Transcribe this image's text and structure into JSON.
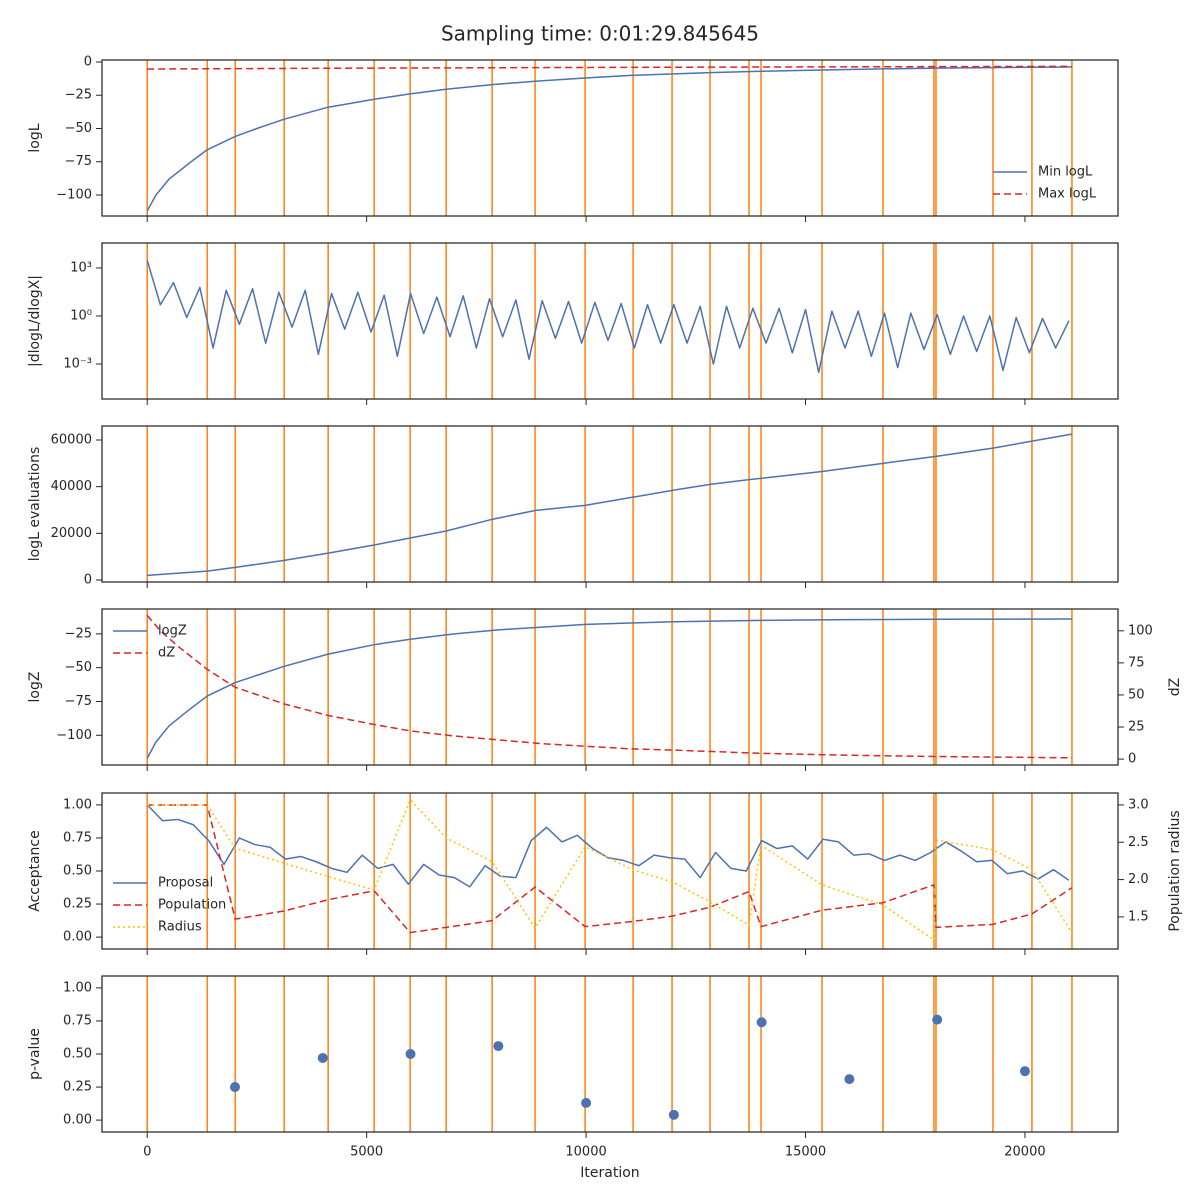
{
  "title": "Sampling time: 0:01:29.845645",
  "chart_data": [
    {
      "type": "line",
      "ylabel": "logL",
      "xlim": [
        -1030,
        22120
      ],
      "xticks": [
        0,
        5000,
        10000,
        15000,
        20000
      ],
      "ylim": [
        -115.8,
        1.5
      ],
      "yticks": [
        0,
        {
          "value": -25,
          "label": "−25"
        },
        {
          "value": -50,
          "label": "−50"
        },
        {
          "value": -75,
          "label": "−75"
        },
        {
          "value": -100,
          "label": "−100"
        }
      ],
      "vlines": [
        0,
        1367,
        2005,
        3121,
        4123,
        5171,
        5991,
        6811,
        7859,
        8838,
        9977,
        11071,
        11959,
        12825,
        13713,
        13986,
        15376,
        16765,
        17927,
        17973,
        19271,
        20159,
        21071
      ],
      "vline_color": "#ff7f0e",
      "legend": "lower right",
      "series": [
        {
          "name": "Min logL",
          "color": "#4c72b0",
          "style": "solid",
          "x": [
            0,
            200,
            500,
            1000,
            1367,
            2005,
            2500,
            3121,
            4123,
            5171,
            5991,
            6811,
            7859,
            8838,
            9977,
            11071,
            12825,
            13986,
            15376,
            16765,
            17973,
            19271,
            21071
          ],
          "values": [
            -112,
            -100,
            -88,
            -75,
            -66,
            -56,
            -50,
            -43,
            -34,
            -28,
            -24,
            -20.5,
            -17,
            -14.5,
            -12,
            -10,
            -8,
            -7,
            -6,
            -5.2,
            -4.6,
            -4.2,
            -3.8
          ]
        },
        {
          "name": "Max logL",
          "color": "#d62728",
          "style": "dashed",
          "x": [
            0,
            5000,
            10000,
            15000,
            21071
          ],
          "values": [
            -5.3,
            -4.6,
            -4.1,
            -3.7,
            -3.3
          ]
        }
      ]
    },
    {
      "type": "line",
      "ylabel": "|dlogL/dlogX|",
      "yscale": "log",
      "xlim": [
        -1030,
        22120
      ],
      "xticks": [
        0,
        5000,
        10000,
        15000,
        20000
      ],
      "ylim": [
        6.5e-06,
        36000
      ],
      "yticks": [
        {
          "value": 1000,
          "label": "10³"
        },
        {
          "value": 1,
          "label": "10⁰"
        },
        {
          "value": 0.001,
          "label": "10⁻³"
        }
      ],
      "vlines": [
        0,
        1367,
        2005,
        3121,
        4123,
        5171,
        5991,
        6811,
        7859,
        8838,
        9977,
        11071,
        11959,
        12825,
        13713,
        13986,
        15376,
        16765,
        17927,
        17973,
        19271,
        20159,
        21071
      ],
      "vline_color": "#ff7f0e",
      "series": [
        {
          "color": "#4c72b0",
          "style": "solid",
          "x": [
            0,
            300,
            600,
            900,
            1200,
            1500,
            1800,
            2100,
            2400,
            2700,
            3000,
            3300,
            3600,
            3900,
            4200,
            4500,
            4800,
            5100,
            5400,
            5700,
            6000,
            6300,
            6600,
            6900,
            7200,
            7500,
            7800,
            8100,
            8400,
            8700,
            9000,
            9300,
            9600,
            9900,
            10200,
            10500,
            10800,
            11100,
            11400,
            11700,
            12000,
            12300,
            12600,
            12900,
            13200,
            13500,
            13800,
            14100,
            14400,
            14700,
            15000,
            15300,
            15600,
            15900,
            16200,
            16500,
            16800,
            17100,
            17400,
            17700,
            18000,
            18300,
            18600,
            18900,
            19200,
            19500,
            19800,
            20100,
            20400,
            20700,
            21000
          ],
          "values": [
            3000,
            5,
            120,
            0.8,
            60,
            0.01,
            40,
            0.3,
            50,
            0.02,
            30,
            0.2,
            40,
            0.004,
            25,
            0.15,
            30,
            0.1,
            20,
            0.003,
            25,
            0.08,
            15,
            0.05,
            18,
            0.01,
            12,
            0.05,
            10,
            0.002,
            9,
            0.04,
            8,
            0.02,
            7,
            0.03,
            6,
            0.01,
            5,
            0.02,
            5,
            0.02,
            4,
            0.001,
            4,
            0.01,
            3,
            0.02,
            3,
            0.005,
            2.5,
            0.0003,
            2,
            0.01,
            2,
            0.003,
            1.5,
            0.0006,
            1.5,
            0.008,
            1.2,
            0.004,
            1,
            0.006,
            1,
            0.0004,
            0.8,
            0.005,
            0.7,
            0.01,
            0.5
          ]
        }
      ]
    },
    {
      "type": "line",
      "ylabel": "logL evaluations",
      "xlim": [
        -1030,
        22120
      ],
      "xticks": [
        0,
        5000,
        10000,
        15000,
        20000
      ],
      "ylim": [
        -860,
        66000
      ],
      "yticks": [
        0,
        20000,
        40000,
        60000
      ],
      "vlines": [
        0,
        1367,
        2005,
        3121,
        4123,
        5171,
        5991,
        6811,
        7859,
        8838,
        9977,
        11071,
        11959,
        12825,
        13713,
        13986,
        15376,
        16765,
        17927,
        17973,
        19271,
        20159,
        21071
      ],
      "vline_color": "#ff7f0e",
      "series": [
        {
          "color": "#4c72b0",
          "style": "solid",
          "x": [
            0,
            1367,
            2005,
            3121,
            4123,
            5171,
            5991,
            6811,
            7859,
            8838,
            9977,
            11071,
            12000,
            12825,
            13713,
            15376,
            16765,
            17973,
            19271,
            20159,
            21071
          ],
          "values": [
            2000,
            3800,
            5400,
            8400,
            11500,
            15000,
            18000,
            21000,
            26000,
            29800,
            32000,
            35500,
            38500,
            41000,
            43000,
            46500,
            50000,
            53000,
            56500,
            59500,
            62500
          ]
        }
      ]
    },
    {
      "type": "line",
      "ylabel": "logZ",
      "y2label": "dZ",
      "xlim": [
        -1030,
        22120
      ],
      "xticks": [
        0,
        5000,
        10000,
        15000,
        20000
      ],
      "ylim": [
        -122,
        -6.6
      ],
      "yticks": [
        {
          "value": -25,
          "label": "−25"
        },
        {
          "value": -50,
          "label": "−50"
        },
        {
          "value": -75,
          "label": "−75"
        },
        {
          "value": -100,
          "label": "−100"
        }
      ],
      "y2lim": [
        -4.6,
        117
      ],
      "y2ticks": [
        0,
        25,
        50,
        75,
        100
      ],
      "vlines": [
        0,
        1367,
        2005,
        3121,
        4123,
        5171,
        5991,
        6811,
        7859,
        8838,
        9977,
        11071,
        11959,
        12825,
        13713,
        13986,
        15376,
        16765,
        17927,
        17973,
        19271,
        20159,
        21071
      ],
      "vline_color": "#ff7f0e",
      "legend": "upper left",
      "series": [
        {
          "name": "logZ",
          "color": "#4c72b0",
          "style": "solid",
          "x": [
            0,
            200,
            500,
            1000,
            1367,
            2005,
            3121,
            4123,
            5171,
            5991,
            7000,
            8000,
            9000,
            10000,
            11000,
            12000,
            14000,
            16000,
            18000,
            21071
          ],
          "values": [
            -117,
            -105,
            -93,
            -80,
            -71,
            -61,
            -49,
            -40,
            -33,
            -29,
            -25,
            -22,
            -20,
            -18,
            -17,
            -16,
            -15,
            -14.5,
            -14.2,
            -14
          ]
        },
        {
          "name": "dZ",
          "color": "#d62728",
          "style": "dashed",
          "axis": "y2",
          "x": [
            0,
            300,
            700,
            1367,
            2005,
            3121,
            4123,
            5171,
            5991,
            7000,
            8000,
            9000,
            10000,
            11000,
            12000,
            14000,
            16000,
            18000,
            21071
          ],
          "values": [
            112,
            100,
            88,
            70,
            56,
            43,
            34,
            27,
            22,
            18,
            15,
            12,
            10,
            8,
            7,
            4.5,
            3,
            2,
            1
          ]
        }
      ]
    },
    {
      "type": "line",
      "ylabel": "Acceptance",
      "y2label": "Population radius",
      "xlim": [
        -1030,
        22120
      ],
      "xticks": [
        0,
        5000,
        10000,
        15000,
        20000
      ],
      "ylim": [
        -0.09,
        1.09
      ],
      "yticks": [
        {
          "value": 0,
          "label": "0.00"
        },
        0.25,
        {
          "value": 0.5,
          "label": "0.50"
        },
        0.75,
        {
          "value": 1,
          "label": "1.00"
        }
      ],
      "y2lim": [
        1.07,
        3.16
      ],
      "y2ticks": [
        1.5,
        {
          "value": 2,
          "label": "2.0"
        },
        2.5,
        {
          "value": 3,
          "label": "3.0"
        }
      ],
      "vlines": [
        0,
        1367,
        2005,
        3121,
        4123,
        5171,
        5991,
        6811,
        7859,
        8838,
        9977,
        11071,
        11959,
        12825,
        13713,
        13986,
        15376,
        16765,
        17927,
        17973,
        19271,
        20159,
        21071
      ],
      "vline_color": "#ff7f0e",
      "legend": "lower left",
      "series": [
        {
          "name": "Proposal",
          "color": "#4c72b0",
          "style": "solid",
          "x": [
            0,
            350,
            700,
            1050,
            1400,
            1750,
            2100,
            2450,
            2800,
            3150,
            3500,
            3850,
            4200,
            4550,
            4900,
            5250,
            5600,
            5950,
            6300,
            6650,
            7000,
            7350,
            7700,
            8050,
            8400,
            8750,
            9100,
            9450,
            9800,
            10150,
            10500,
            10850,
            11200,
            11550,
            11900,
            12250,
            12600,
            12950,
            13300,
            13650,
            14000,
            14350,
            14700,
            15050,
            15400,
            15750,
            16100,
            16450,
            16800,
            17150,
            17500,
            17850,
            18200,
            18550,
            18900,
            19250,
            19600,
            19950,
            20300,
            20650,
            21000
          ],
          "values": [
            1.0,
            0.88,
            0.89,
            0.85,
            0.73,
            0.55,
            0.75,
            0.7,
            0.68,
            0.59,
            0.61,
            0.57,
            0.52,
            0.49,
            0.62,
            0.52,
            0.55,
            0.4,
            0.55,
            0.47,
            0.45,
            0.38,
            0.54,
            0.46,
            0.45,
            0.73,
            0.83,
            0.72,
            0.77,
            0.67,
            0.6,
            0.58,
            0.54,
            0.62,
            0.6,
            0.59,
            0.45,
            0.64,
            0.52,
            0.5,
            0.73,
            0.67,
            0.69,
            0.59,
            0.74,
            0.72,
            0.62,
            0.63,
            0.58,
            0.62,
            0.58,
            0.64,
            0.72,
            0.65,
            0.57,
            0.58,
            0.48,
            0.5,
            0.44,
            0.51,
            0.43
          ]
        },
        {
          "name": "Population",
          "color": "#d62728",
          "style": "dashed",
          "axis": "y2",
          "x": [
            0,
            1367,
            2005,
            3121,
            4123,
            5171,
            5991,
            6811,
            7859,
            8838,
            9977,
            11071,
            11959,
            12825,
            13713,
            13986,
            15376,
            16765,
            17927,
            17973,
            19271,
            20159,
            21071
          ],
          "values": [
            3.0,
            3.0,
            1.47,
            1.58,
            1.73,
            1.85,
            1.29,
            1.36,
            1.45,
            1.9,
            1.37,
            1.44,
            1.51,
            1.63,
            1.84,
            1.37,
            1.59,
            1.69,
            1.93,
            1.36,
            1.4,
            1.54,
            1.89
          ]
        },
        {
          "name": "Radius",
          "color": "#ffc400",
          "style": "dotted",
          "axis": "y2",
          "x": [
            0,
            1367,
            2005,
            3121,
            4123,
            5171,
            5991,
            6811,
            7859,
            8838,
            9977,
            11071,
            11959,
            12825,
            13713,
            13986,
            15376,
            16765,
            17927,
            17973,
            19271,
            20159,
            21071
          ],
          "values": [
            3.0,
            3.0,
            2.42,
            2.22,
            2.04,
            1.86,
            3.07,
            2.56,
            2.24,
            1.35,
            2.44,
            2.13,
            1.97,
            1.7,
            1.39,
            2.46,
            1.93,
            1.66,
            1.19,
            2.53,
            2.4,
            2.13,
            1.29
          ]
        }
      ]
    },
    {
      "type": "scatter",
      "ylabel": "p-value",
      "xlabel": "Iteration",
      "xlim": [
        -1030,
        22120
      ],
      "xticks": [
        0,
        5000,
        10000,
        15000,
        20000
      ],
      "ylim": [
        -0.09,
        1.09
      ],
      "yticks": [
        {
          "value": 0,
          "label": "0.00"
        },
        0.25,
        {
          "value": 0.5,
          "label": "0.50"
        },
        0.75,
        {
          "value": 1,
          "label": "1.00"
        }
      ],
      "vlines": [
        0,
        1367,
        2005,
        3121,
        4123,
        5171,
        5991,
        6811,
        7859,
        8838,
        9977,
        11071,
        11959,
        12825,
        13713,
        13986,
        15376,
        16765,
        17927,
        17973,
        19271,
        20159,
        21071
      ],
      "vline_color": "#ff7f0e",
      "series": [
        {
          "color": "#4c72b0",
          "x": [
            2000,
            4000,
            6000,
            8000,
            10000,
            12000,
            14000,
            16000,
            18000,
            20000
          ],
          "values": [
            0.25,
            0.47,
            0.5,
            0.56,
            0.13,
            0.04,
            0.74,
            0.31,
            0.76,
            0.37
          ]
        }
      ]
    }
  ]
}
